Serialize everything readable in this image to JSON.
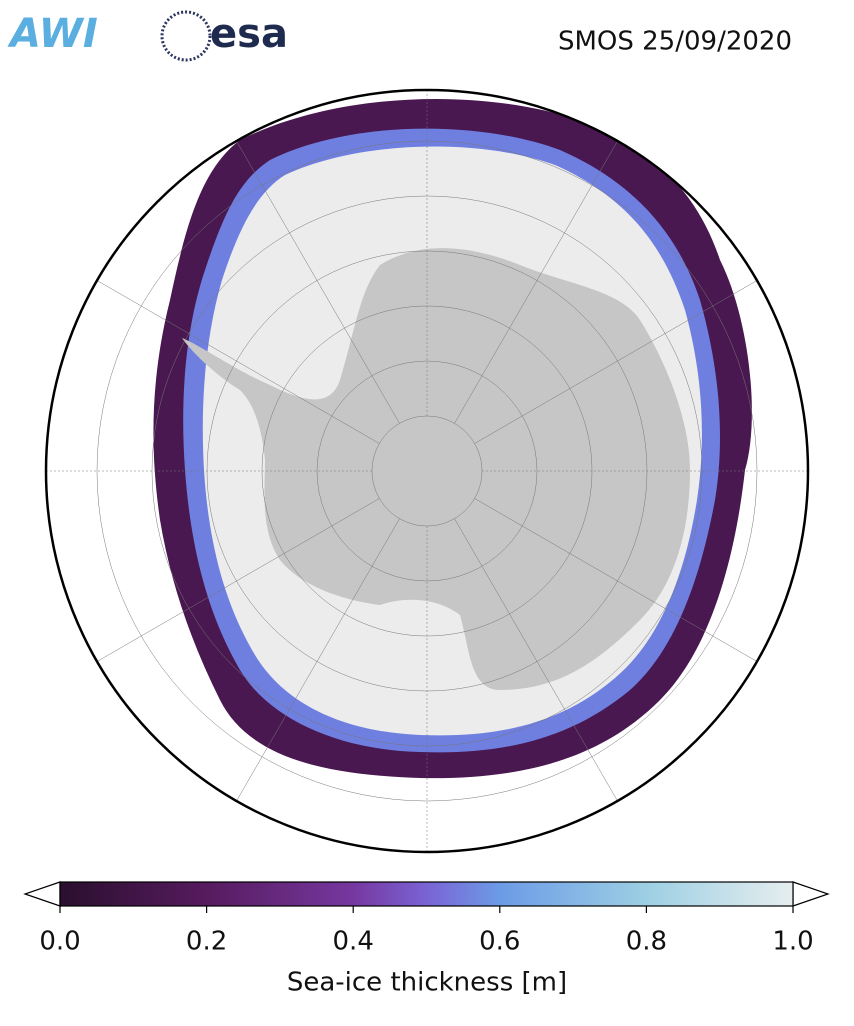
{
  "logos": [
    "AWI",
    "esa"
  ],
  "title": "SMOS 25/09/2020",
  "colorbar": {
    "label": "Sea-ice thickness [m]",
    "lim": [
      0,
      1
    ],
    "ticks": [
      {
        "value": 0,
        "label": "0.0"
      },
      0.2,
      0.4,
      0.6,
      0.8,
      {
        "value": 1,
        "label": "1.0"
      }
    ]
  }
}
